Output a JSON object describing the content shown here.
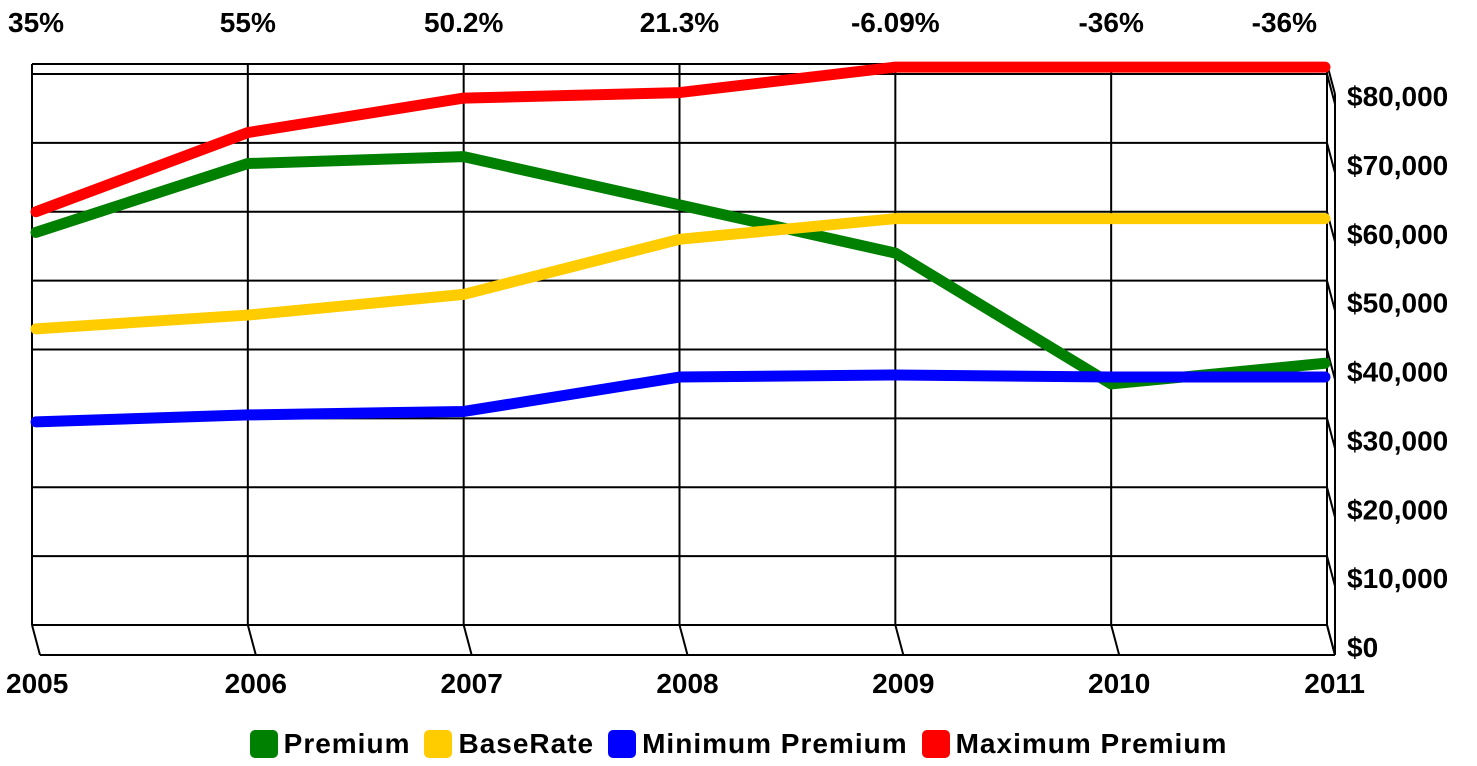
{
  "chart_data": {
    "type": "line",
    "categories": [
      "2005",
      "2006",
      "2007",
      "2008",
      "2009",
      "2010",
      "2011"
    ],
    "top_labels": [
      "35%",
      "55%",
      "50.2%",
      "21.3%",
      "-6.09%",
      "-36%",
      "-36%"
    ],
    "y_ticks": [
      "$0",
      "$10,000",
      "$20,000",
      "$30,000",
      "$40,000",
      "$50,000",
      "$60,000",
      "$70,000",
      "$80,000"
    ],
    "ylim": [
      0,
      80000
    ],
    "y_axis_side": "right",
    "grid": true,
    "legend_position": "bottom",
    "series": [
      {
        "name": "Premium",
        "color": "#008000",
        "values": [
          57000,
          67000,
          68000,
          61000,
          54000,
          35000,
          38000
        ]
      },
      {
        "name": "BaseRate",
        "color": "#FFCC00",
        "values": [
          43000,
          45000,
          48000,
          56000,
          59000,
          59000,
          59000
        ]
      },
      {
        "name": "Minimum Premium",
        "color": "#0000FF",
        "values": [
          29500,
          30500,
          31000,
          36000,
          36300,
          36000,
          36000
        ]
      },
      {
        "name": "Maximum Premium",
        "color": "#FF0000",
        "values": [
          60000,
          71500,
          76500,
          77300,
          81000,
          81000,
          81000
        ]
      }
    ]
  }
}
